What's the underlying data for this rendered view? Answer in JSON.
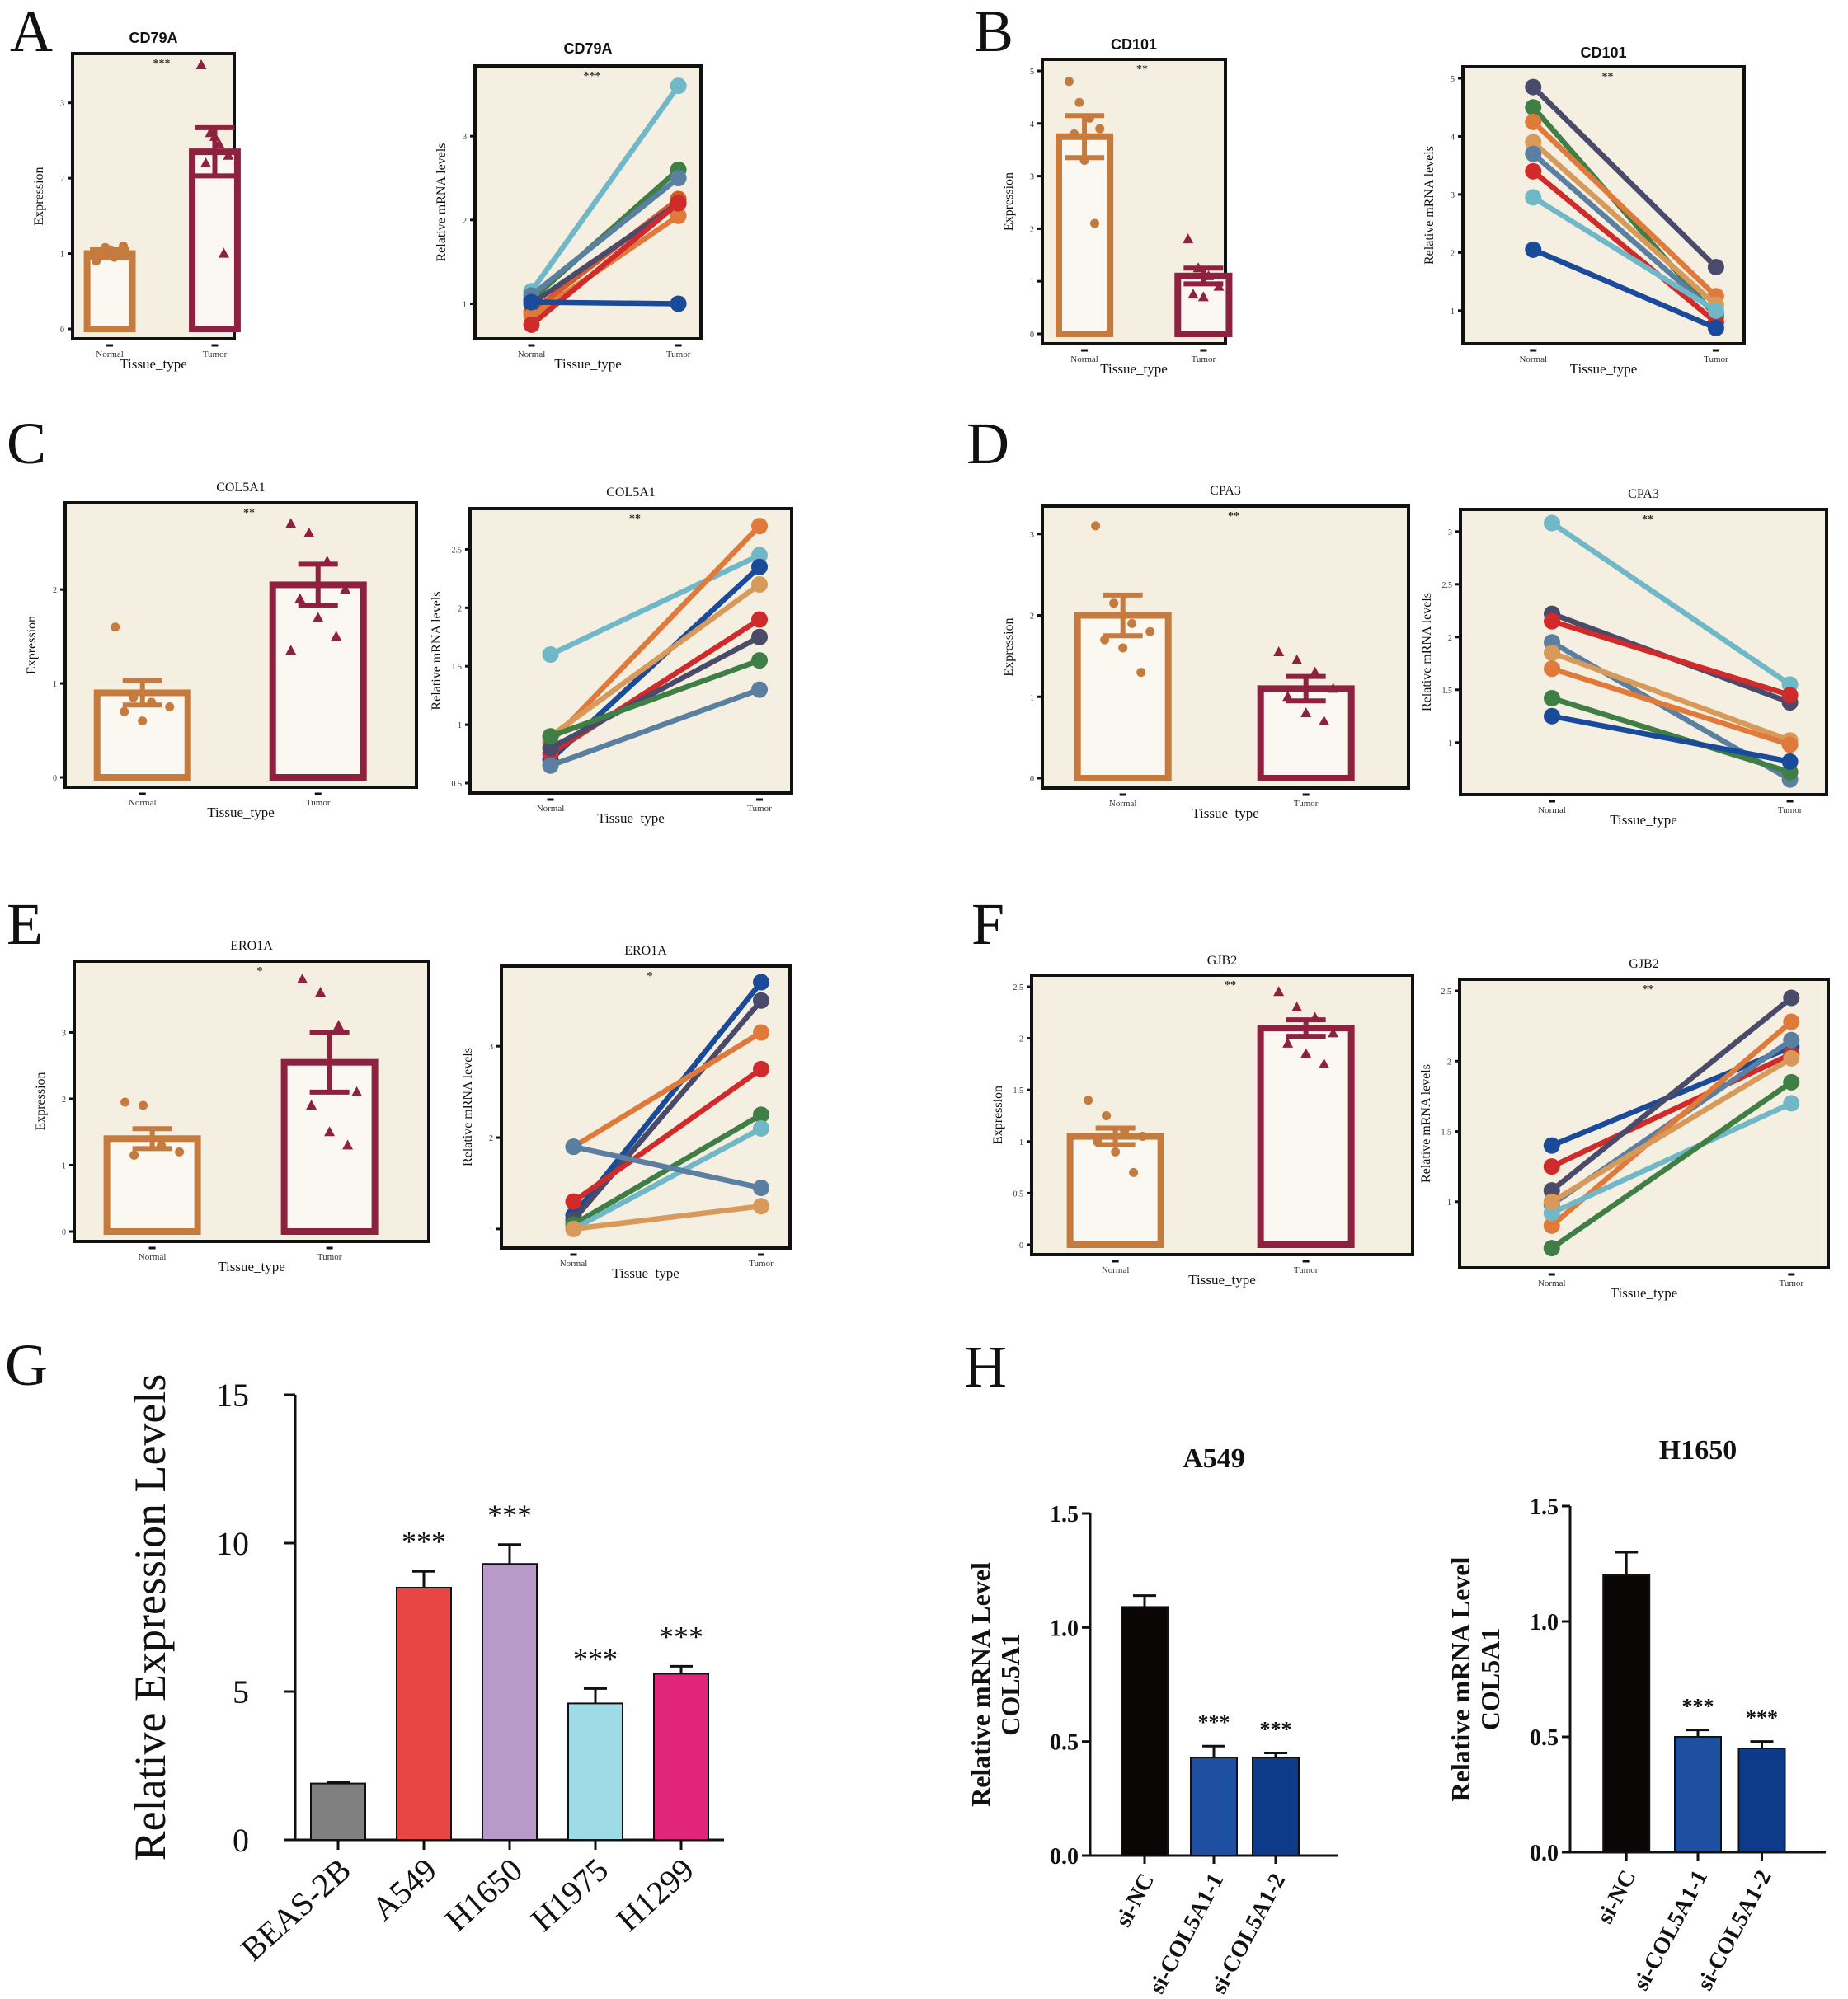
{
  "figure_title": "",
  "chart_data": [
    {
      "id": "A1",
      "panel_letter": "A",
      "type": "bar",
      "title": "CD79A",
      "sig": "***",
      "xlabel": "Tissue_type",
      "ylabel": "Expression",
      "categories": [
        "Normal",
        "Tumor"
      ],
      "values": [
        1.0,
        2.35
      ],
      "errors": [
        0.05,
        0.32
      ],
      "ylim": [
        0,
        3.5
      ],
      "yticks": [
        0,
        1,
        2,
        3
      ],
      "points": [
        [
          1.0,
          1.08,
          0.95,
          1.1,
          0.98,
          1.05,
          1.0,
          0.9
        ],
        [
          3.5,
          2.6,
          2.45,
          2.3,
          2.2,
          2.55,
          1.0
        ]
      ]
    },
    {
      "id": "A2",
      "type": "line",
      "title": "CD79A",
      "sig": "***",
      "xlabel": "Tissue_type",
      "ylabel": "Relative mRNA levels",
      "categories": [
        "Normal",
        "Tumor"
      ],
      "ylim": [
        0.7,
        3.7
      ],
      "yticks": [
        1,
        2,
        3
      ],
      "series": [
        {
          "color": "#70b8c8",
          "values": [
            1.15,
            3.6
          ]
        },
        {
          "color": "#3f7f46",
          "values": [
            1.05,
            2.6
          ]
        },
        {
          "color": "#5a7fa0",
          "values": [
            1.1,
            2.5
          ]
        },
        {
          "color": "#d85a2a",
          "values": [
            0.9,
            2.25
          ]
        },
        {
          "color": "#4a4a6a",
          "values": [
            1.0,
            2.2
          ]
        },
        {
          "color": "#e07a3a",
          "values": [
            0.85,
            2.05
          ]
        },
        {
          "color": "#d02a2a",
          "values": [
            0.75,
            2.2
          ]
        },
        {
          "color": "#1a4a9a",
          "values": [
            1.02,
            1.0
          ]
        }
      ]
    },
    {
      "id": "B1",
      "panel_letter": "B",
      "type": "bar",
      "title": "CD101",
      "sig": "**",
      "xlabel": "Tissue_type",
      "ylabel": "Expression",
      "categories": [
        "Normal",
        "Tumor"
      ],
      "values": [
        3.75,
        1.1
      ],
      "errors": [
        0.4,
        0.15
      ],
      "ylim": [
        0,
        5
      ],
      "yticks": [
        0,
        1,
        2,
        3,
        4,
        5
      ],
      "points": [
        [
          4.8,
          4.4,
          4.1,
          3.9,
          3.8,
          3.3,
          2.1
        ],
        [
          1.8,
          1.25,
          1.1,
          0.9,
          0.75,
          0.7
        ]
      ]
    },
    {
      "id": "B2",
      "type": "line",
      "title": "CD101",
      "sig": "**",
      "xlabel": "Tissue_type",
      "ylabel": "Relative mRNA levels",
      "categories": [
        "Normal",
        "Tumor"
      ],
      "ylim": [
        0.6,
        5
      ],
      "yticks": [
        1,
        2,
        3,
        4,
        5
      ],
      "series": [
        {
          "color": "#4a4a6a",
          "values": [
            4.85,
            1.75
          ]
        },
        {
          "color": "#3f7f46",
          "values": [
            4.5,
            0.9
          ]
        },
        {
          "color": "#e07a3a",
          "values": [
            4.25,
            1.25
          ]
        },
        {
          "color": "#d89a5a",
          "values": [
            3.9,
            1.1
          ]
        },
        {
          "color": "#5a7fa0",
          "values": [
            3.7,
            0.95
          ]
        },
        {
          "color": "#d02a2a",
          "values": [
            3.4,
            0.8
          ]
        },
        {
          "color": "#70b8c8",
          "values": [
            2.95,
            1.0
          ]
        },
        {
          "color": "#1a4a9a",
          "values": [
            2.05,
            0.7
          ]
        }
      ]
    },
    {
      "id": "C1",
      "panel_letter": "C",
      "type": "bar",
      "title": "COL5A1",
      "sig": "**",
      "xlabel": "Tissue_type",
      "ylabel": "Expression",
      "categories": [
        "Normal",
        "Tumor"
      ],
      "values": [
        0.9,
        2.05
      ],
      "errors": [
        0.13,
        0.22
      ],
      "ylim": [
        0,
        2.8
      ],
      "yticks": [
        0,
        1,
        2
      ],
      "points": [
        [
          1.6,
          0.85,
          0.8,
          0.75,
          0.7,
          0.6
        ],
        [
          2.7,
          2.6,
          2.3,
          2.0,
          1.9,
          1.7,
          1.5,
          1.35
        ]
      ]
    },
    {
      "id": "C2",
      "type": "line",
      "title": "COL5A1",
      "sig": "**",
      "xlabel": "Tissue_type",
      "ylabel": "Relative mRNA levels",
      "categories": [
        "Normal",
        "Tumor"
      ],
      "ylim": [
        0.5,
        2.75
      ],
      "yticks": [
        0.5,
        1.0,
        1.5,
        2.0,
        2.5
      ],
      "series": [
        {
          "color": "#70b8c8",
          "values": [
            1.6,
            2.45
          ]
        },
        {
          "color": "#e07a3a",
          "values": [
            0.85,
            2.7
          ]
        },
        {
          "color": "#1a4a9a",
          "values": [
            0.7,
            2.35
          ]
        },
        {
          "color": "#d89a5a",
          "values": [
            0.9,
            2.2
          ]
        },
        {
          "color": "#d02a2a",
          "values": [
            0.75,
            1.9
          ]
        },
        {
          "color": "#4a4a6a",
          "values": [
            0.8,
            1.75
          ]
        },
        {
          "color": "#3f7f46",
          "values": [
            0.9,
            1.55
          ]
        },
        {
          "color": "#5a7fa0",
          "values": [
            0.65,
            1.3
          ]
        }
      ]
    },
    {
      "id": "D1",
      "panel_letter": "D",
      "type": "bar",
      "title": "CPA3",
      "sig": "**",
      "xlabel": "Tissue_type",
      "ylabel": "Expression",
      "categories": [
        "Normal",
        "Tumor"
      ],
      "values": [
        2.0,
        1.1
      ],
      "errors": [
        0.25,
        0.15
      ],
      "ylim": [
        0,
        3.2
      ],
      "yticks": [
        0,
        1,
        2,
        3
      ],
      "points": [
        [
          3.1,
          2.15,
          1.9,
          1.8,
          1.7,
          1.6,
          1.3
        ],
        [
          1.55,
          1.45,
          1.3,
          1.1,
          1.0,
          0.8,
          0.7
        ]
      ]
    },
    {
      "id": "D2",
      "type": "line",
      "title": "CPA3",
      "sig": "**",
      "xlabel": "Tissue_type",
      "ylabel": "Relative mRNA levels",
      "categories": [
        "Normal",
        "Tumor"
      ],
      "ylim": [
        0.6,
        3.1
      ],
      "yticks": [
        1.0,
        1.5,
        2.0,
        2.5,
        3.0
      ],
      "series": [
        {
          "color": "#70b8c8",
          "values": [
            3.08,
            1.55
          ]
        },
        {
          "color": "#4a4a6a",
          "values": [
            2.22,
            1.38
          ]
        },
        {
          "color": "#d02a2a",
          "values": [
            2.15,
            1.45
          ]
        },
        {
          "color": "#5a7fa0",
          "values": [
            1.95,
            0.65
          ]
        },
        {
          "color": "#d89a5a",
          "values": [
            1.85,
            1.02
          ]
        },
        {
          "color": "#e07a3a",
          "values": [
            1.7,
            0.98
          ]
        },
        {
          "color": "#3f7f46",
          "values": [
            1.42,
            0.72
          ]
        },
        {
          "color": "#1a4a9a",
          "values": [
            1.25,
            0.82
          ]
        }
      ]
    },
    {
      "id": "E1",
      "panel_letter": "E",
      "type": "bar",
      "title": "ERO1A",
      "sig": "*",
      "xlabel": "Tissue_type",
      "ylabel": "Expression",
      "categories": [
        "Normal",
        "Tumor"
      ],
      "values": [
        1.4,
        2.55
      ],
      "errors": [
        0.15,
        0.45
      ],
      "ylim": [
        0,
        3.9
      ],
      "yticks": [
        0,
        1,
        2,
        3
      ],
      "points": [
        [
          1.95,
          1.9,
          1.3,
          1.2,
          1.15
        ],
        [
          3.8,
          3.6,
          3.1,
          2.1,
          1.9,
          1.5,
          1.3
        ]
      ]
    },
    {
      "id": "E2",
      "type": "line",
      "title": "ERO1A",
      "sig": "*",
      "xlabel": "Tissue_type",
      "ylabel": "Relative mRNA levels",
      "categories": [
        "Normal",
        "Tumor"
      ],
      "ylim": [
        0.9,
        3.75
      ],
      "yticks": [
        1,
        2,
        3
      ],
      "series": [
        {
          "color": "#1a4a9a",
          "values": [
            1.15,
            3.7
          ]
        },
        {
          "color": "#4a4a6a",
          "values": [
            1.1,
            3.5
          ]
        },
        {
          "color": "#e07a3a",
          "values": [
            1.9,
            3.15
          ]
        },
        {
          "color": "#d02a2a",
          "values": [
            1.3,
            2.75
          ]
        },
        {
          "color": "#3f7f46",
          "values": [
            1.05,
            2.25
          ]
        },
        {
          "color": "#70b8c8",
          "values": [
            1.0,
            2.1
          ]
        },
        {
          "color": "#5a7fa0",
          "values": [
            1.9,
            1.45
          ]
        },
        {
          "color": "#d89a5a",
          "values": [
            1.0,
            1.25
          ]
        }
      ]
    },
    {
      "id": "F1",
      "panel_letter": "F",
      "type": "bar",
      "title": "GJB2",
      "sig": "**",
      "xlabel": "Tissue_type",
      "ylabel": "Expression",
      "categories": [
        "Normal",
        "Tumor"
      ],
      "values": [
        1.05,
        2.1
      ],
      "errors": [
        0.08,
        0.08
      ],
      "ylim": [
        0,
        2.5
      ],
      "yticks": [
        0.0,
        0.5,
        1.0,
        1.5,
        2.0,
        2.5
      ],
      "points": [
        [
          1.4,
          1.25,
          1.1,
          1.05,
          1.0,
          0.9,
          0.7
        ],
        [
          2.45,
          2.3,
          2.2,
          2.05,
          1.95,
          1.85,
          1.75
        ]
      ]
    },
    {
      "id": "F2",
      "type": "line",
      "title": "GJB2",
      "sig": "**",
      "xlabel": "Tissue_type",
      "ylabel": "Relative mRNA levels",
      "categories": [
        "Normal",
        "Tumor"
      ],
      "ylim": [
        0.6,
        2.5
      ],
      "yticks": [
        1.0,
        1.5,
        2.0,
        2.5
      ],
      "series": [
        {
          "color": "#1a4a9a",
          "values": [
            1.4,
            2.1
          ]
        },
        {
          "color": "#d02a2a",
          "values": [
            1.25,
            2.05
          ]
        },
        {
          "color": "#4a4a6a",
          "values": [
            1.08,
            2.45
          ]
        },
        {
          "color": "#5a7fa0",
          "values": [
            0.98,
            2.15
          ]
        },
        {
          "color": "#e07a3a",
          "values": [
            0.83,
            2.28
          ]
        },
        {
          "color": "#70b8c8",
          "values": [
            0.92,
            1.7
          ]
        },
        {
          "color": "#d89a5a",
          "values": [
            1.0,
            2.02
          ]
        },
        {
          "color": "#3f7f46",
          "values": [
            0.67,
            1.85
          ]
        }
      ]
    },
    {
      "id": "G",
      "panel_letter": "G",
      "type": "bar",
      "title": "",
      "xlabel": "",
      "ylabel": "Relative Expression Levels",
      "categories": [
        "BEAS-2B",
        "A549",
        "H1650",
        "H1975",
        "H1299"
      ],
      "values": [
        1.9,
        8.5,
        9.3,
        4.6,
        5.6
      ],
      "errors": [
        0.05,
        0.55,
        0.65,
        0.5,
        0.25
      ],
      "sig": [
        "",
        "***",
        "***",
        "***",
        "***"
      ],
      "colors": [
        "#808080",
        "#e84545",
        "#b79ac8",
        "#9fdbe6",
        "#e0257a"
      ],
      "ylim": [
        0,
        15
      ],
      "yticks": [
        0,
        5,
        10,
        15
      ]
    },
    {
      "id": "H1",
      "panel_letter": "H",
      "type": "bar",
      "title": "A549",
      "xlabel": "",
      "ylabel": "Relative mRNA Level",
      "ylabel2": "COL5A1",
      "categories": [
        "si-NC",
        "si-COL5A1-1",
        "si-COL5A1-2"
      ],
      "values": [
        1.09,
        0.43,
        0.43
      ],
      "errors": [
        0.05,
        0.05,
        0.02
      ],
      "sig": [
        "",
        "***",
        "***"
      ],
      "colors": [
        "#0a0606",
        "#1e4fa0",
        "#0e3a8a"
      ],
      "ylim": [
        0,
        1.5
      ],
      "yticks": [
        0.0,
        0.5,
        1.0,
        1.5
      ]
    },
    {
      "id": "H2",
      "type": "bar",
      "title": "H1650",
      "xlabel": "",
      "ylabel": "Relative mRNA Level",
      "ylabel2": "COL5A1",
      "categories": [
        "si-NC",
        "si-COL5A1-1",
        "si-COL5A1-2"
      ],
      "values": [
        1.2,
        0.5,
        0.45
      ],
      "errors": [
        0.1,
        0.03,
        0.03
      ],
      "sig": [
        "",
        "***",
        "***"
      ],
      "colors": [
        "#0a0606",
        "#1e4fa0",
        "#0e3a8a"
      ],
      "ylim": [
        0,
        1.5
      ],
      "yticks": [
        0.0,
        0.5,
        1.0,
        1.5
      ]
    }
  ]
}
